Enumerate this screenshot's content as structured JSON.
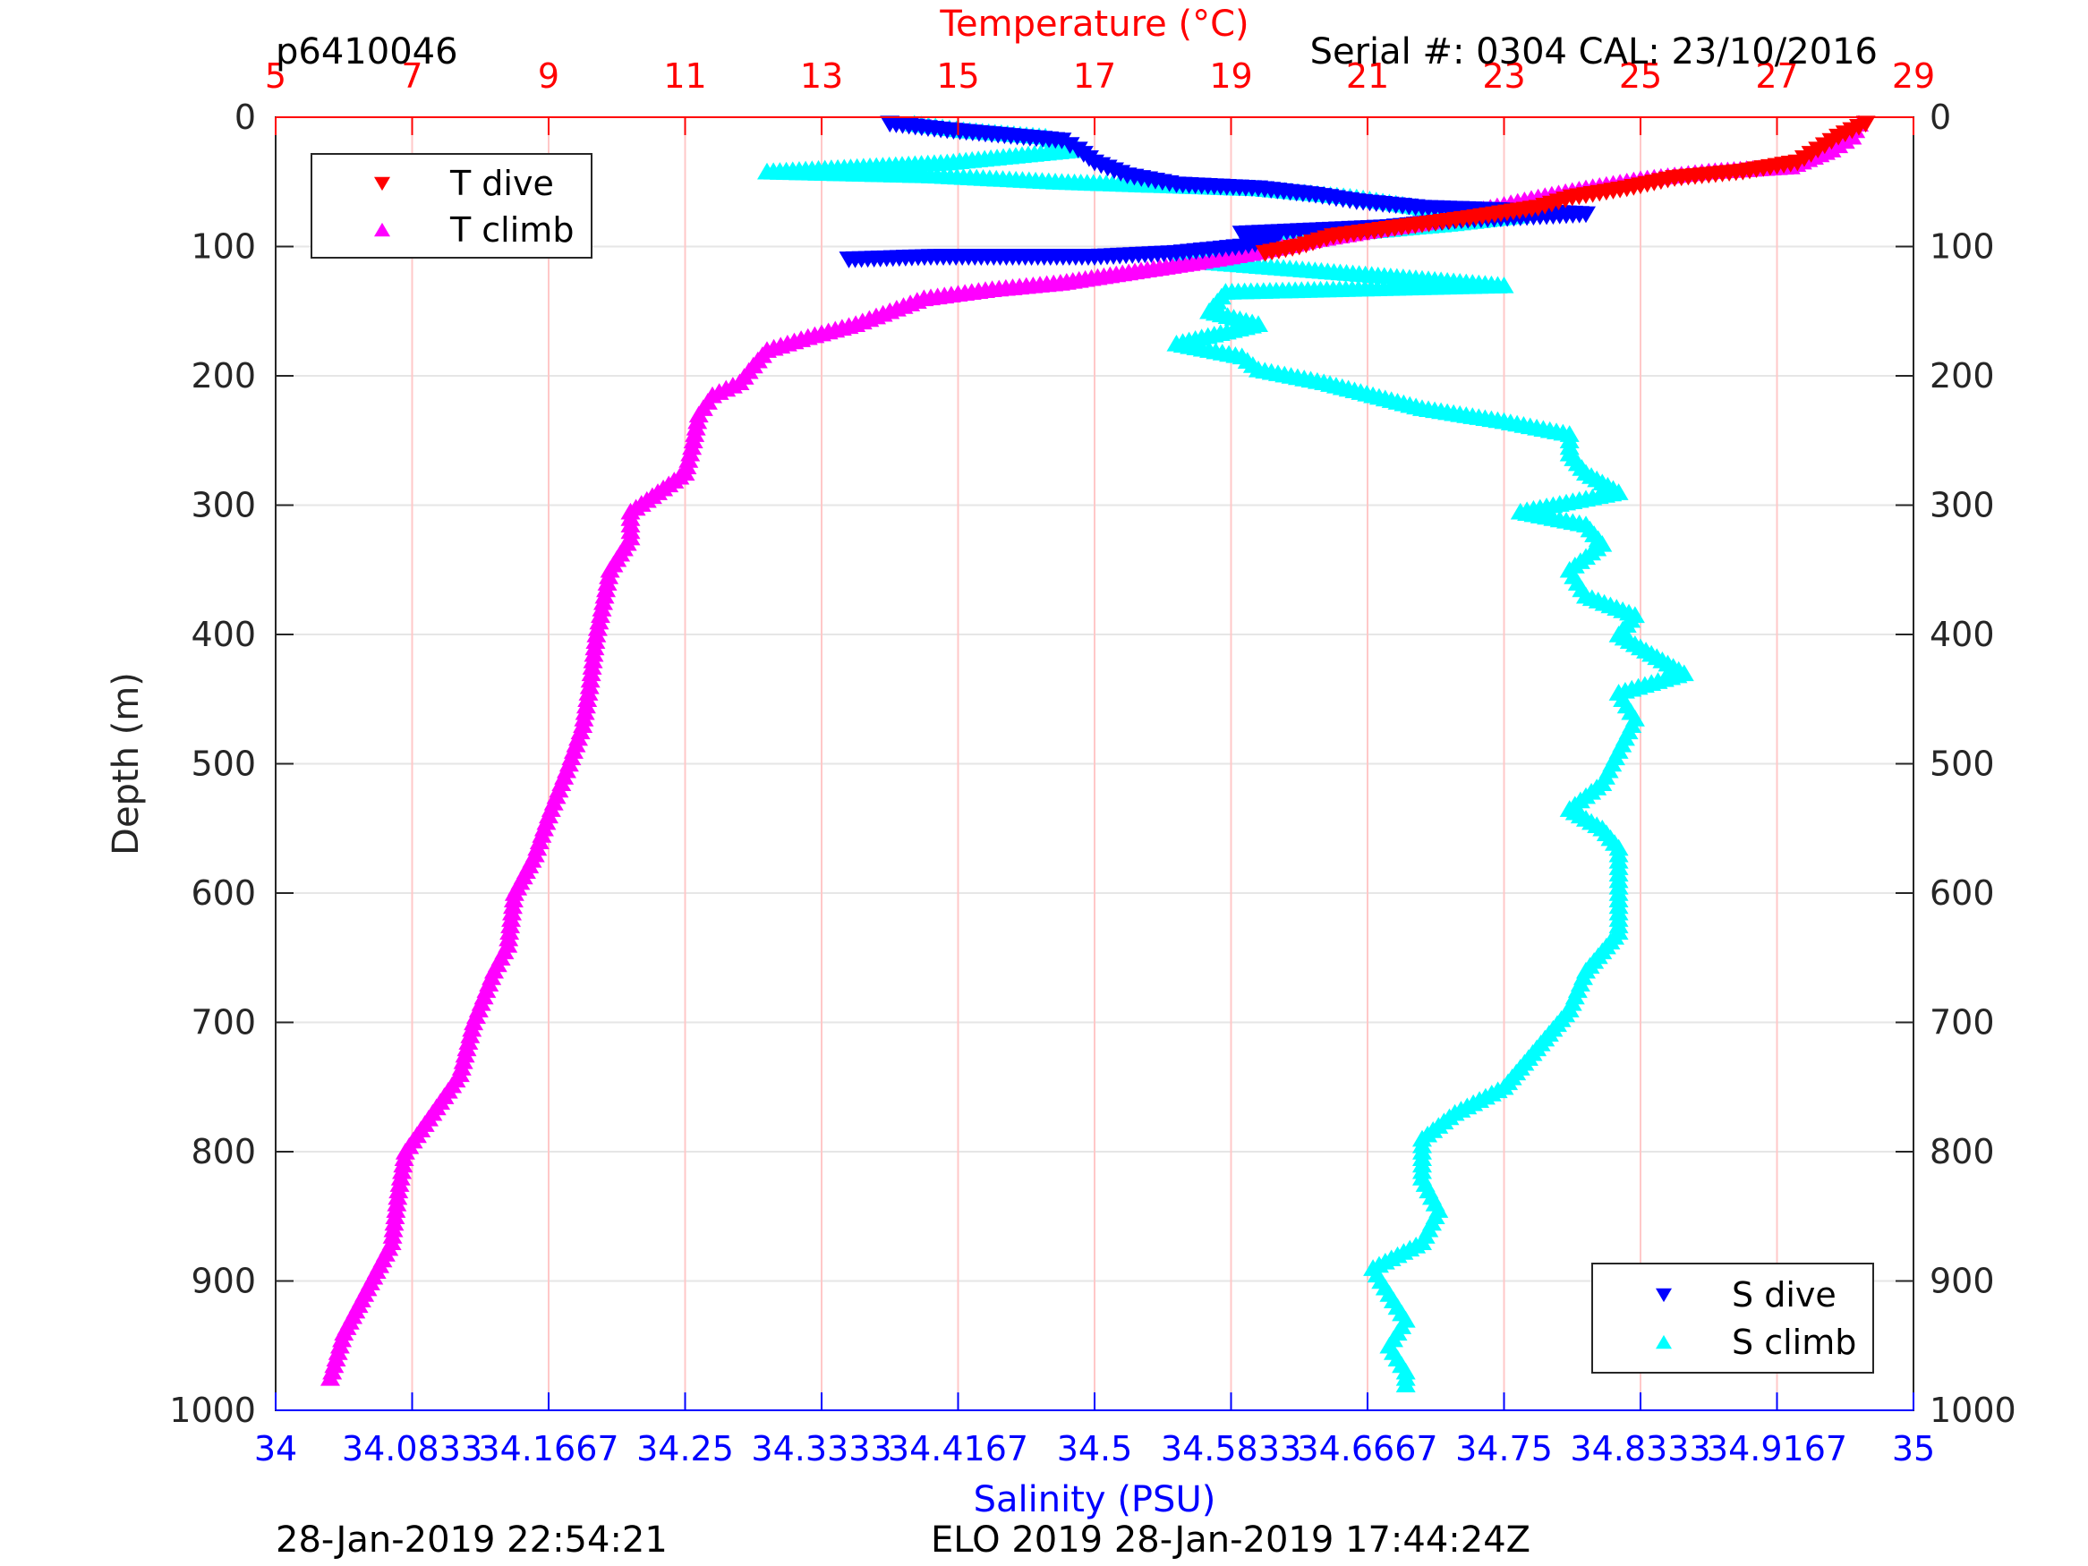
{
  "header": {
    "profile_id": "p6410046",
    "serial_cal": "Serial #: 0304  CAL: 23/10/2016"
  },
  "footer": {
    "left_timestamp": "28-Jan-2019 22:54:21",
    "right_timestamp": "ELO 2019 28-Jan-2019 17:44:24Z"
  },
  "colors": {
    "t_dive": "#ff0000",
    "t_climb": "#ff00ff",
    "s_dive": "#0000ff",
    "s_climb": "#00ffff",
    "temperature_axis": "#ff0000",
    "salinity_axis": "#0000ff",
    "depth_axis": "#262626"
  },
  "chart_data": {
    "type": "scatter",
    "title": "",
    "ylabel": "Depth (m)",
    "x_top_label": "Temperature (°C)",
    "x_bottom_label": "Salinity (PSU)",
    "ylim": [
      0,
      1000
    ],
    "y_reversed": true,
    "x_top_lim": [
      5,
      29
    ],
    "x_bottom_lim": [
      34,
      35
    ],
    "grid": true,
    "y_ticks": [
      "0",
      "100",
      "200",
      "300",
      "400",
      "500",
      "600",
      "700",
      "800",
      "900",
      "1000"
    ],
    "x_top_ticks": [
      "5",
      "7",
      "9",
      "11",
      "13",
      "15",
      "17",
      "19",
      "21",
      "23",
      "25",
      "27",
      "29"
    ],
    "x_bottom_ticks": [
      "34",
      "34.0833",
      "34.1667",
      "34.25",
      "34.3333",
      "34.4167",
      "34.5",
      "34.5833",
      "34.6667",
      "34.75",
      "34.8333",
      "34.9167",
      "35"
    ],
    "legend_temperature": {
      "placement": "top-left",
      "entries": [
        "T dive",
        "T climb"
      ]
    },
    "legend_salinity": {
      "placement": "bottom-right",
      "entries": [
        "S dive",
        "S climb"
      ]
    },
    "series": [
      {
        "name": "T dive",
        "axis": "temperature",
        "marker": "triangle-down",
        "points": [
          [
            28.3,
            5
          ],
          [
            28.1,
            10
          ],
          [
            27.9,
            15
          ],
          [
            27.6,
            25
          ],
          [
            27.3,
            35
          ],
          [
            26.5,
            42
          ],
          [
            25.5,
            47
          ],
          [
            24.8,
            55
          ],
          [
            24.0,
            62
          ],
          [
            23.5,
            70
          ],
          [
            22.5,
            78
          ],
          [
            21.5,
            85
          ],
          [
            20.5,
            92
          ],
          [
            20.0,
            100
          ],
          [
            19.5,
            105
          ]
        ]
      },
      {
        "name": "T climb",
        "axis": "temperature",
        "marker": "triangle-up",
        "points": [
          [
            28.2,
            5
          ],
          [
            28.1,
            15
          ],
          [
            27.8,
            25
          ],
          [
            27.2,
            38
          ],
          [
            26.0,
            42
          ],
          [
            25.0,
            48
          ],
          [
            24.2,
            55
          ],
          [
            23.5,
            62
          ],
          [
            22.8,
            70
          ],
          [
            22.0,
            80
          ],
          [
            21.0,
            88
          ],
          [
            20.2,
            95
          ],
          [
            19.3,
            105
          ],
          [
            18.5,
            112
          ],
          [
            17.5,
            120
          ],
          [
            16.5,
            128
          ],
          [
            15.5,
            133
          ],
          [
            14.5,
            140
          ],
          [
            14.0,
            150
          ],
          [
            13.5,
            160
          ],
          [
            12.8,
            170
          ],
          [
            12.2,
            180
          ],
          [
            12.0,
            192
          ],
          [
            11.8,
            205
          ],
          [
            11.4,
            215
          ],
          [
            11.2,
            230
          ],
          [
            11.1,
            255
          ],
          [
            11.0,
            275
          ],
          [
            10.6,
            290
          ],
          [
            10.2,
            305
          ],
          [
            10.2,
            325
          ],
          [
            9.9,
            350
          ],
          [
            9.8,
            375
          ],
          [
            9.7,
            400
          ],
          [
            9.6,
            440
          ],
          [
            9.5,
            470
          ],
          [
            9.3,
            500
          ],
          [
            9.0,
            540
          ],
          [
            8.8,
            570
          ],
          [
            8.5,
            600
          ],
          [
            8.4,
            640
          ],
          [
            8.2,
            660
          ],
          [
            7.9,
            700
          ],
          [
            7.7,
            740
          ],
          [
            7.3,
            770
          ],
          [
            6.9,
            800
          ],
          [
            6.8,
            830
          ],
          [
            6.7,
            870
          ],
          [
            6.3,
            910
          ],
          [
            6.0,
            940
          ],
          [
            5.8,
            975
          ]
        ]
      },
      {
        "name": "S dive",
        "axis": "salinity",
        "marker": "triangle-down",
        "points": [
          [
            34.375,
            5
          ],
          [
            34.41,
            10
          ],
          [
            34.48,
            18
          ],
          [
            34.49,
            25
          ],
          [
            34.5,
            35
          ],
          [
            34.52,
            45
          ],
          [
            34.55,
            52
          ],
          [
            34.6,
            55
          ],
          [
            34.635,
            60
          ],
          [
            34.66,
            65
          ],
          [
            34.7,
            70
          ],
          [
            34.75,
            72
          ],
          [
            34.8,
            75
          ],
          [
            34.72,
            80
          ],
          [
            34.68,
            85
          ],
          [
            34.59,
            90
          ],
          [
            34.61,
            95
          ],
          [
            34.59,
            100
          ],
          [
            34.55,
            105
          ],
          [
            34.5,
            108
          ],
          [
            34.4,
            108
          ],
          [
            34.35,
            110
          ]
        ]
      },
      {
        "name": "S climb",
        "axis": "salinity",
        "marker": "triangle-up",
        "points": [
          [
            34.39,
            5
          ],
          [
            34.42,
            10
          ],
          [
            34.47,
            15
          ],
          [
            34.49,
            25
          ],
          [
            34.41,
            35
          ],
          [
            34.3,
            42
          ],
          [
            34.4,
            45
          ],
          [
            34.48,
            50
          ],
          [
            34.6,
            55
          ],
          [
            34.66,
            62
          ],
          [
            34.7,
            70
          ],
          [
            34.76,
            76
          ],
          [
            34.72,
            82
          ],
          [
            34.65,
            90
          ],
          [
            34.6,
            100
          ],
          [
            34.55,
            110
          ],
          [
            34.6,
            115
          ],
          [
            34.7,
            125
          ],
          [
            34.75,
            130
          ],
          [
            34.58,
            135
          ],
          [
            34.57,
            150
          ],
          [
            34.6,
            160
          ],
          [
            34.55,
            175
          ],
          [
            34.59,
            185
          ],
          [
            34.6,
            195
          ],
          [
            34.64,
            205
          ],
          [
            34.67,
            215
          ],
          [
            34.7,
            225
          ],
          [
            34.75,
            235
          ],
          [
            34.79,
            245
          ],
          [
            34.79,
            260
          ],
          [
            34.8,
            275
          ],
          [
            34.82,
            290
          ],
          [
            34.76,
            305
          ],
          [
            34.8,
            315
          ],
          [
            34.81,
            330
          ],
          [
            34.79,
            350
          ],
          [
            34.8,
            370
          ],
          [
            34.83,
            385
          ],
          [
            34.82,
            400
          ],
          [
            34.84,
            415
          ],
          [
            34.86,
            430
          ],
          [
            34.82,
            445
          ],
          [
            34.83,
            465
          ],
          [
            34.82,
            490
          ],
          [
            34.81,
            515
          ],
          [
            34.79,
            535
          ],
          [
            34.81,
            550
          ],
          [
            34.82,
            565
          ],
          [
            34.82,
            600
          ],
          [
            34.82,
            630
          ],
          [
            34.8,
            660
          ],
          [
            34.79,
            690
          ],
          [
            34.77,
            720
          ],
          [
            34.75,
            750
          ],
          [
            34.72,
            770
          ],
          [
            34.7,
            790
          ],
          [
            34.7,
            820
          ],
          [
            34.71,
            845
          ],
          [
            34.7,
            870
          ],
          [
            34.67,
            890
          ],
          [
            34.68,
            910
          ],
          [
            34.69,
            930
          ],
          [
            34.68,
            950
          ],
          [
            34.69,
            970
          ],
          [
            34.69,
            980
          ]
        ]
      }
    ]
  }
}
